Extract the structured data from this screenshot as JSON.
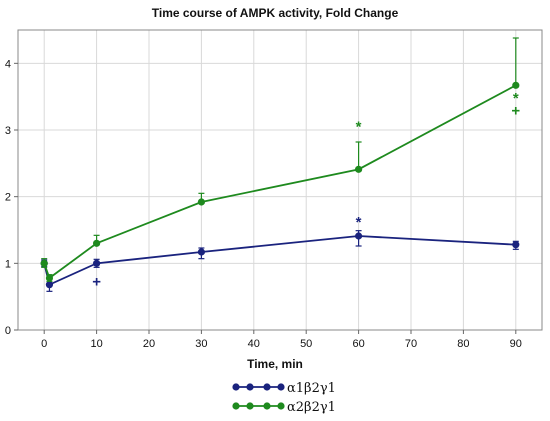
{
  "chart_data": {
    "type": "line",
    "title": "Time course of AMPK activity, Fold Change",
    "xlabel": "Time, min",
    "ylabel": "",
    "xlim": [
      -5,
      95
    ],
    "ylim": [
      0,
      4.5
    ],
    "xticks": [
      0,
      10,
      20,
      30,
      40,
      50,
      60,
      70,
      80,
      90
    ],
    "yticks": [
      0,
      1,
      2,
      3,
      4
    ],
    "grid": true,
    "legend_position": "bottom-center",
    "series": [
      {
        "name": "α1β2γ1",
        "color": "#1a237e",
        "x": [
          0,
          1,
          10,
          30,
          60,
          90
        ],
        "y": [
          1.0,
          0.68,
          1.0,
          1.17,
          1.41,
          1.28
        ],
        "err_lo": [
          0.05,
          0.1,
          0.06,
          0.1,
          0.15,
          0.07
        ],
        "err_hi": [
          0.05,
          0.1,
          0.06,
          0.06,
          0.08,
          0.05
        ]
      },
      {
        "name": "α2β2γ1",
        "color": "#1e8a1e",
        "x": [
          0,
          1,
          10,
          30,
          60,
          90
        ],
        "y": [
          1.0,
          0.78,
          1.3,
          1.92,
          2.41,
          3.67
        ],
        "err_lo": [
          0.06,
          0.05,
          0.0,
          0.0,
          0.0,
          0.0
        ],
        "err_hi": [
          0.07,
          0.05,
          0.12,
          0.13,
          0.41,
          0.71
        ]
      }
    ],
    "annotations": [
      {
        "text": "+",
        "x": 10,
        "y": 0.73,
        "series": 0
      },
      {
        "text": "*",
        "x": 60,
        "y": 1.62,
        "series": 0
      },
      {
        "text": "*",
        "x": 60,
        "y": 3.05,
        "series": 1
      },
      {
        "text": "*",
        "x": 90,
        "y": 3.48,
        "series": 1
      },
      {
        "text": "+",
        "x": 90,
        "y": 3.29,
        "series": 1
      }
    ]
  }
}
